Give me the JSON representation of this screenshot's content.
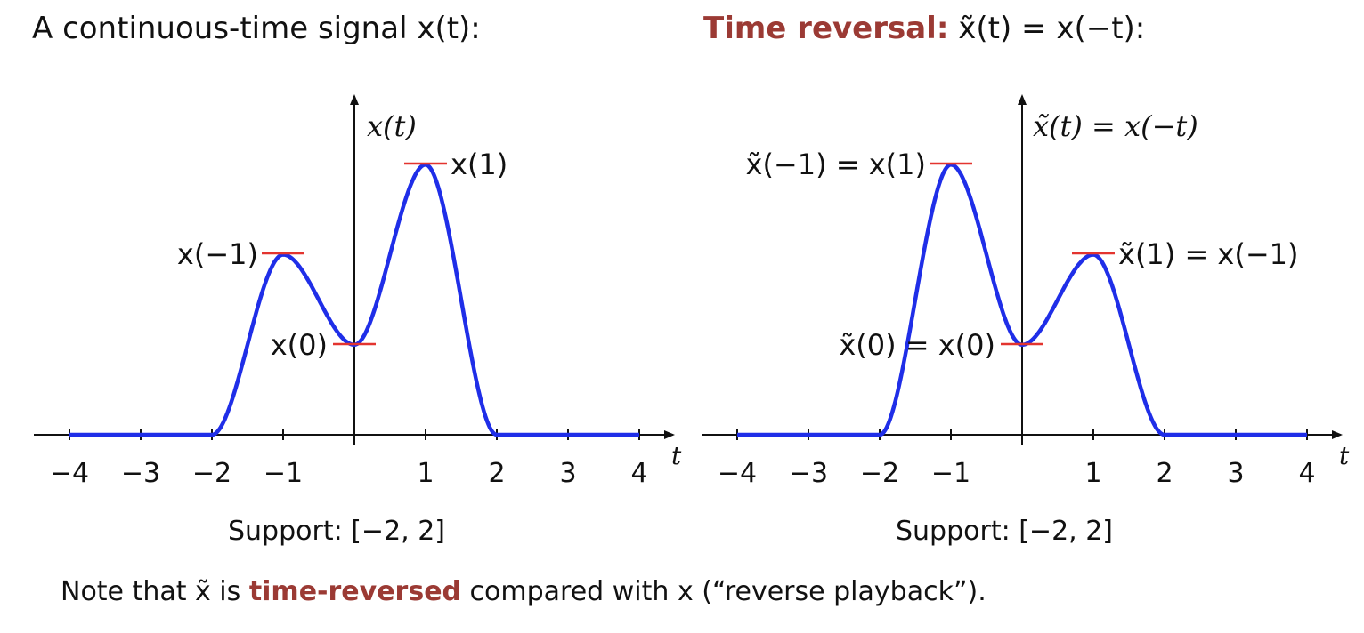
{
  "headings": {
    "left": "A continuous-time signal x(t):",
    "right_accent": "Time reversal:",
    "right_rest": "x̃(t) = x(−t):"
  },
  "colors": {
    "curve": "#1f2ee8",
    "marker": "#e3342f",
    "accent": "#9b3a34",
    "axis": "#111111"
  },
  "left_plot": {
    "y_axis_label": "x(t)",
    "x_axis_label": "t",
    "ticks": [
      "−4",
      "−3",
      "−2",
      "−1",
      "1",
      "2",
      "3",
      "4"
    ],
    "support": "Support:  [−2, 2]",
    "annotations": {
      "peak_pos1": "x(1)",
      "peak_neg1": "x(−1)",
      "origin": "x(0)"
    },
    "samples": {
      "x(-1)": 0.5,
      "x(0)": 0.25,
      "x(1)": 0.75
    }
  },
  "right_plot": {
    "y_axis_label": "x̃(t) = x(−t)",
    "x_axis_label": "t",
    "ticks": [
      "−4",
      "−3",
      "−2",
      "−1",
      "1",
      "2",
      "3",
      "4"
    ],
    "support": "Support:  [−2, 2]",
    "annotations": {
      "peak_neg1": "x̃(−1) = x(1)",
      "peak_pos1": "x̃(1) = x(−1)",
      "origin": "x̃(0) = x(0)"
    }
  },
  "note": {
    "before": "Note that x̃ is ",
    "accent": "time-reversed",
    "after": " compared with x (“reverse playback”)."
  }
}
